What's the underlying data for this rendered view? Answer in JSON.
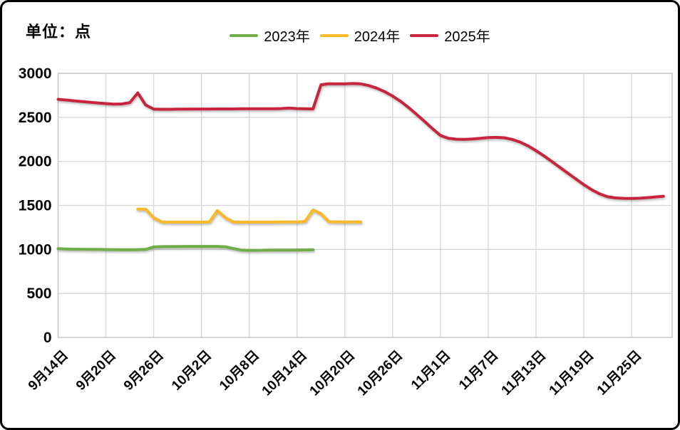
{
  "title": "单位：点",
  "legend": [
    {
      "label": "2023年",
      "color": "#70AD47"
    },
    {
      "label": "2024年",
      "color": "#FBB829"
    },
    {
      "label": "2025年",
      "color": "#C8253C"
    }
  ],
  "colors": {
    "gridline": "#D6D6D6",
    "plot_border": "#C9C9C9",
    "text": "#000000",
    "background": "#FFFFFF",
    "outer_border": "#000000"
  },
  "chart_data": {
    "type": "line",
    "title": "单位：点",
    "xlabel": "",
    "ylabel": "点",
    "grid": true,
    "legend_position": "top-center",
    "x_axis": {
      "tick_labels": [
        "9月14日",
        "9月20日",
        "9月26日",
        "10月2日",
        "10月8日",
        "10月14日",
        "10月20日",
        "10月26日",
        "11月1日",
        "11月7日",
        "11月13日",
        "11月19日",
        "11月25日"
      ],
      "tick_interval_days": 6,
      "start_date": "9月14日",
      "end_date": "11月29日"
    },
    "y_axis": {
      "min": 0,
      "max": 3000,
      "tick_step": 500,
      "tick_labels": [
        "0",
        "500",
        "1000",
        "1500",
        "2000",
        "2500",
        "3000"
      ]
    },
    "series": [
      {
        "name": "2023年",
        "color": "#70AD47",
        "sampling": "daily",
        "start_day_offset_from_sep14": 0,
        "date_range": "9月14日-10月16日",
        "values": [
          1008,
          1005,
          1003,
          1002,
          1001,
          1000,
          999,
          998,
          997,
          997,
          998,
          1000,
          1028,
          1032,
          1033,
          1033,
          1034,
          1034,
          1034,
          1034,
          1034,
          1030,
          1010,
          993,
          990,
          990,
          991,
          992,
          992,
          993,
          994,
          995,
          996
        ]
      },
      {
        "name": "2024年",
        "color": "#FBB829",
        "sampling": "daily",
        "start_day_offset_from_sep14": 10,
        "date_range": "9月24日-10月22日",
        "values": [
          1458,
          1456,
          1360,
          1312,
          1310,
          1310,
          1310,
          1310,
          1310,
          1312,
          1440,
          1360,
          1312,
          1310,
          1310,
          1310,
          1310,
          1310,
          1312,
          1312,
          1312,
          1318,
          1448,
          1405,
          1315,
          1312,
          1312,
          1312,
          1312
        ]
      },
      {
        "name": "2025年",
        "color": "#C8253C",
        "sampling": "daily",
        "start_day_offset_from_sep14": 0,
        "date_range": "9月14日-11月29日",
        "values": [
          2705,
          2697,
          2688,
          2680,
          2672,
          2664,
          2656,
          2650,
          2652,
          2668,
          2778,
          2640,
          2594,
          2592,
          2592,
          2593,
          2594,
          2595,
          2595,
          2595,
          2596,
          2596,
          2596,
          2597,
          2597,
          2597,
          2598,
          2598,
          2600,
          2605,
          2600,
          2597,
          2596,
          2870,
          2882,
          2880,
          2880,
          2884,
          2880,
          2862,
          2832,
          2792,
          2742,
          2682,
          2612,
          2534,
          2455,
          2372,
          2295,
          2262,
          2252,
          2250,
          2254,
          2262,
          2270,
          2273,
          2268,
          2250,
          2220,
          2176,
          2122,
          2062,
          1998,
          1932,
          1866,
          1800,
          1736,
          1678,
          1630,
          1598,
          1585,
          1580,
          1579,
          1582,
          1588,
          1596,
          1604
        ]
      }
    ]
  }
}
